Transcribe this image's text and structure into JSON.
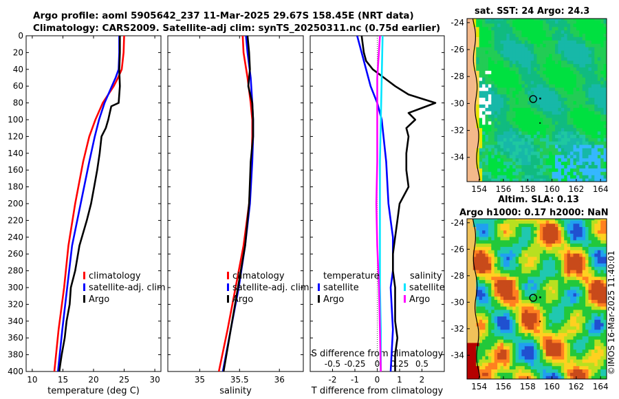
{
  "header": {
    "line1": "Argo profile: aoml 5905642_237 11-Mar-2025 29.67S 158.45E (NRT data)",
    "line2": "Climatology: CARS2009. Satellite-adj clim: synTS_20250311.nc (0.75d earlier)"
  },
  "copyright": "©IMOS 16-Mar-2025 11:40:01",
  "colors": {
    "climatology": "#ff0000",
    "satellite": "#0000ff",
    "argo": "#000000",
    "salinity_satellite": "#00e5ff",
    "salinity_argo": "#ff00ff"
  },
  "chart_data": [
    {
      "type": "line",
      "name": "temperature-profile",
      "xlabel": "temperature (deg C)",
      "ylabel": "",
      "xlim": [
        9,
        31
      ],
      "ylim": [
        400,
        0
      ],
      "xticks": [
        10,
        15,
        20,
        25,
        30
      ],
      "yticks": [
        0,
        20,
        40,
        60,
        80,
        100,
        120,
        140,
        160,
        180,
        200,
        220,
        240,
        260,
        280,
        300,
        320,
        340,
        360,
        380,
        400
      ],
      "legend": [
        "climatology",
        "satellite-adj. clim",
        "Argo"
      ],
      "series": [
        {
          "name": "climatology",
          "color": "#ff0000",
          "depth": [
            0,
            20,
            40,
            50,
            60,
            80,
            100,
            120,
            150,
            200,
            250,
            300,
            350,
            400
          ],
          "values": [
            25.0,
            24.9,
            24.6,
            24.0,
            23.3,
            21.5,
            20.3,
            19.3,
            18.3,
            17.0,
            15.9,
            15.2,
            14.3,
            13.6
          ]
        },
        {
          "name": "satellite-adj. clim",
          "color": "#0000ff",
          "depth": [
            0,
            20,
            40,
            50,
            60,
            80,
            100,
            120,
            150,
            200,
            250,
            300,
            350,
            400
          ],
          "values": [
            24.2,
            24.2,
            24.1,
            23.6,
            23.0,
            21.8,
            20.9,
            20.2,
            19.3,
            17.9,
            16.5,
            15.7,
            14.9,
            14.2
          ]
        },
        {
          "name": "Argo",
          "color": "#000000",
          "depth": [
            0,
            20,
            40,
            60,
            80,
            84,
            90,
            100,
            110,
            120,
            140,
            160,
            180,
            200,
            220,
            250,
            280,
            300,
            320,
            340,
            360,
            380,
            400
          ],
          "values": [
            24.3,
            24.3,
            24.2,
            24.3,
            24.1,
            22.9,
            22.7,
            22.4,
            22.0,
            21.3,
            21.0,
            20.6,
            20.1,
            19.6,
            18.9,
            17.7,
            17.0,
            16.3,
            16.1,
            15.6,
            15.3,
            14.8,
            14.4
          ]
        }
      ]
    },
    {
      "type": "line",
      "name": "salinity-profile",
      "xlabel": "salinity",
      "ylabel": "",
      "xlim": [
        34.6,
        36.3
      ],
      "ylim": [
        400,
        0
      ],
      "xticks": [
        35,
        35.5,
        36
      ],
      "xtick_labels": [
        "35",
        "35.5",
        "36"
      ],
      "legend": [
        "climatology",
        "satellite-adj. clim",
        "Argo"
      ],
      "series": [
        {
          "name": "climatology",
          "color": "#ff0000",
          "depth": [
            0,
            20,
            50,
            80,
            100,
            120,
            150,
            200,
            250,
            300,
            350,
            400
          ],
          "values": [
            35.54,
            35.55,
            35.6,
            35.64,
            35.66,
            35.66,
            35.65,
            35.62,
            35.55,
            35.45,
            35.35,
            35.24
          ]
        },
        {
          "name": "satellite-adj. clim",
          "color": "#0000ff",
          "depth": [
            0,
            20,
            50,
            80,
            100,
            120,
            150,
            200,
            250,
            300,
            350,
            400
          ],
          "values": [
            35.58,
            35.6,
            35.64,
            35.66,
            35.67,
            35.67,
            35.66,
            35.63,
            35.57,
            35.49,
            35.39,
            35.29
          ]
        },
        {
          "name": "Argo",
          "color": "#000000",
          "depth": [
            0,
            20,
            40,
            60,
            80,
            100,
            120,
            150,
            200,
            250,
            300,
            350,
            400
          ],
          "values": [
            35.6,
            35.62,
            35.63,
            35.61,
            35.66,
            35.67,
            35.67,
            35.64,
            35.62,
            35.57,
            35.48,
            35.39,
            35.3
          ]
        }
      ]
    },
    {
      "type": "line",
      "name": "difference-profile",
      "xlabel": "T difference from climatology",
      "top_xlabel": "S difference from climatology",
      "xlim": [
        -3,
        3
      ],
      "ylim": [
        400,
        0
      ],
      "xticks": [
        -2,
        -1,
        0,
        1,
        2
      ],
      "xtick_labels": [
        "-2",
        "-1",
        "0",
        "1",
        "2"
      ],
      "s_ticks": [
        -0.5,
        -0.25,
        0,
        0.25,
        0.5
      ],
      "s_tick_labels": [
        "-0.5",
        "-0.25",
        "0",
        "0.25",
        "0.5"
      ],
      "legend_temperature_title": "temperature",
      "legend_salinity_title": "salinity",
      "legend_temperature": [
        "satellite",
        "Argo"
      ],
      "legend_salinity": [
        "satellite",
        "Argo"
      ],
      "series": [
        {
          "name": "temperature satellite",
          "color": "#0000ff",
          "depth": [
            0,
            20,
            40,
            60,
            80,
            100,
            150,
            200,
            220,
            240,
            250,
            280,
            300,
            350,
            400
          ],
          "values": [
            -0.9,
            -0.7,
            -0.5,
            -0.3,
            0.0,
            0.2,
            0.4,
            0.5,
            0.6,
            0.7,
            0.7,
            0.7,
            0.6,
            0.7,
            0.6
          ]
        },
        {
          "name": "temperature Argo",
          "color": "#000000",
          "depth": [
            0,
            20,
            30,
            40,
            50,
            60,
            70,
            75,
            80,
            84,
            88,
            92,
            100,
            110,
            120,
            140,
            160,
            180,
            200,
            220,
            240,
            260,
            280,
            300,
            320,
            340,
            360,
            380,
            400
          ],
          "values": [
            -0.7,
            -0.6,
            -0.5,
            -0.2,
            0.3,
            0.8,
            1.4,
            2.0,
            2.6,
            2.2,
            1.8,
            1.4,
            1.7,
            1.3,
            1.4,
            1.3,
            1.3,
            1.4,
            1.0,
            0.9,
            0.8,
            0.7,
            0.7,
            0.8,
            0.8,
            0.8,
            0.9,
            0.8,
            0.8
          ]
        },
        {
          "name": "salinity satellite",
          "color": "#00e5ff",
          "depth": [
            0,
            50,
            100,
            150,
            200,
            250,
            300,
            350,
            400
          ],
          "values": [
            0.06,
            0.05,
            0.04,
            0.03,
            0.03,
            0.03,
            0.03,
            0.04,
            0.04
          ]
        },
        {
          "name": "salinity Argo",
          "color": "#ff00ff",
          "depth": [
            0,
            50,
            100,
            150,
            200,
            250,
            300,
            350,
            400
          ],
          "values": [
            0.03,
            0.0,
            0.0,
            0.0,
            -0.01,
            0.0,
            0.02,
            0.03,
            0.04
          ]
        }
      ]
    },
    {
      "type": "heatmap",
      "name": "sst-map",
      "title": "sat. SST: 24 Argo: 24.3",
      "xlim": [
        153,
        164.5
      ],
      "ylim": [
        -35.8,
        -23.7
      ],
      "xticks": [
        154,
        156,
        158,
        160,
        162,
        164
      ],
      "yticks": [
        -24,
        -26,
        -28,
        -30,
        -32,
        -34
      ],
      "ytick_labels": [
        "-24",
        "-26",
        "-28",
        "-30",
        "-32",
        "-34"
      ],
      "argo_position": {
        "lon": 158.45,
        "lat": -29.67
      }
    },
    {
      "type": "heatmap",
      "name": "sla-map",
      "title_line1": "Altim. SLA: 0.13",
      "title_line2": "Argo h1000: 0.17 h2000: NaN",
      "xlim": [
        153,
        164.5
      ],
      "ylim": [
        -35.8,
        -23.7
      ],
      "xticks": [
        154,
        156,
        158,
        160,
        162,
        164
      ],
      "yticks": [
        -24,
        -26,
        -28,
        -30,
        -32,
        -34
      ],
      "ytick_labels": [
        "-24",
        "-26",
        "-28",
        "-30",
        "-32",
        "-34"
      ],
      "argo_position": {
        "lon": 158.45,
        "lat": -29.67
      }
    }
  ]
}
